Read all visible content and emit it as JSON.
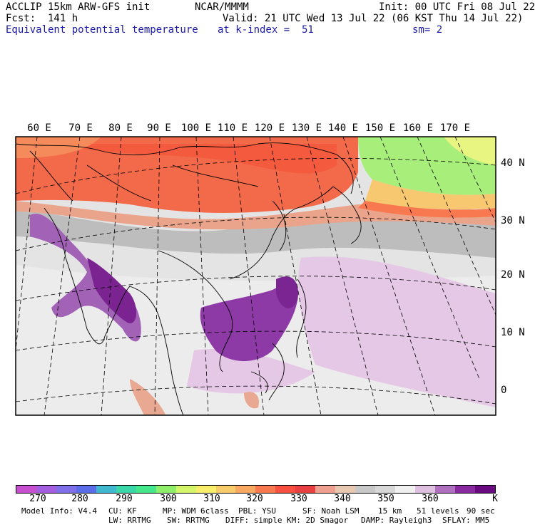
{
  "header": {
    "model": "ACCLIP 15km ARW-GFS init",
    "org": "NCAR/MMMM",
    "init": "Init: 00 UTC Fri 08 Jul 22",
    "fcst": "Fcst:  141 h",
    "valid": "Valid: 21 UTC Wed 13 Jul 22 (06 KST Thu 14 Jul 22)",
    "field": "Equivalent potential temperature",
    "level": "at k-index =  51",
    "smooth": "sm= 2"
  },
  "longitude_labels": [
    "60 E",
    "70 E",
    "80 E",
    "90 E",
    "100 E",
    "110 E",
    "120 E",
    "130 E",
    "140 E",
    "150 E",
    "160 E",
    "170 E"
  ],
  "latitude_labels": [
    "40 N",
    "30 N",
    "20 N",
    "10 N",
    "0"
  ],
  "colorbar": {
    "colors": [
      "#c84fd0",
      "#a35fe0",
      "#7f6fe8",
      "#5a6ce8",
      "#3fb8d0",
      "#3ad8a8",
      "#44e88a",
      "#8fef6a",
      "#d5f56a",
      "#f8ee6a",
      "#f8cc6a",
      "#f8a860",
      "#f87850",
      "#f85040",
      "#e84040",
      "#f0a090",
      "#e8c8b0",
      "#c8c8c8",
      "#d8d8d8",
      "#f0f0f0",
      "#e0c0e0",
      "#b070c0",
      "#8a2aa0",
      "#6a0a80"
    ],
    "tick_labels": [
      "270",
      "280",
      "290",
      "300",
      "310",
      "320",
      "330",
      "340",
      "350",
      "360"
    ],
    "unit": "K"
  },
  "model_info": {
    "line1": [
      "Model Info: V4.4",
      "CU: KF",
      "MP: WDM 6class",
      "PBL: YSU",
      "SF: Noah LSM",
      "15 km",
      "51 levels",
      "90 sec"
    ],
    "line2": [
      "LW: RRTMG",
      "SW: RRTMG",
      "DIFF: simple",
      "KM: 2D Smagor",
      "DAMP: Rayleigh3",
      "SFLAY: MM5"
    ]
  }
}
